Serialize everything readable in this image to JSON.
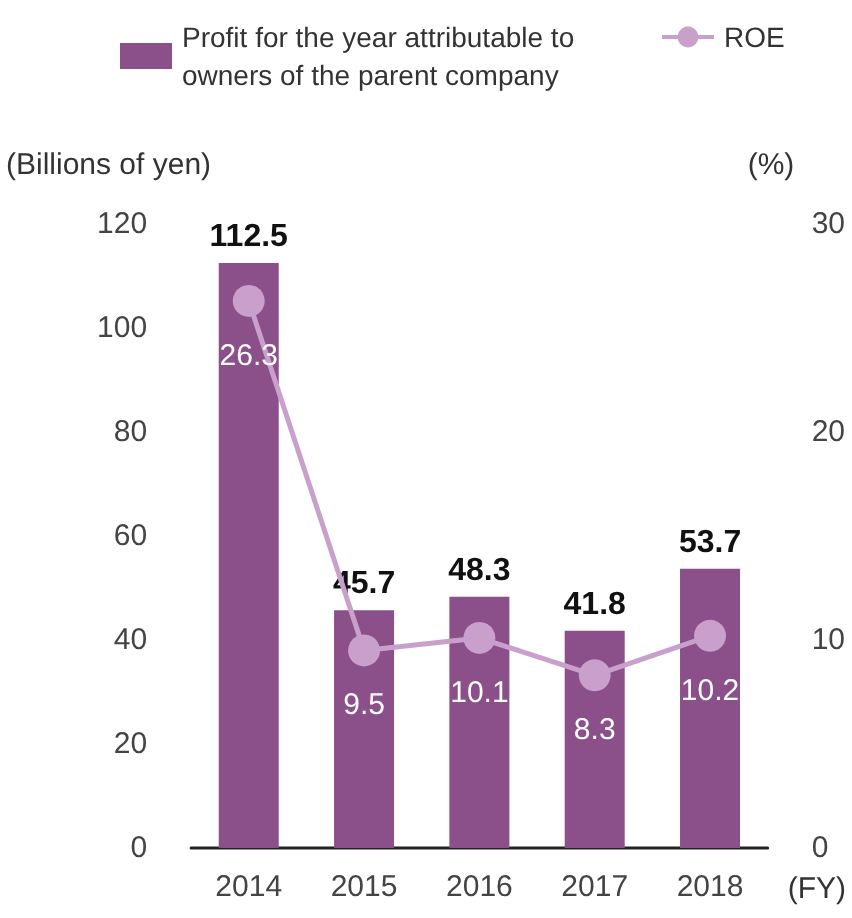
{
  "chart_data": {
    "type": "bar",
    "categories": [
      "2014",
      "2015",
      "2016",
      "2017",
      "2018"
    ],
    "xlabel": "(FY)",
    "ylabel": "(Billions of yen)",
    "y2label": "(%)",
    "series": [
      {
        "name": "Profit for the year attributable to owners of the parent company",
        "color": "#8b4f8a",
        "values": [
          112.5,
          45.7,
          48.3,
          41.8,
          53.7
        ]
      },
      {
        "name": "ROE",
        "type": "line",
        "axis": "y2",
        "color": "#c9a0cb",
        "values": [
          26.3,
          9.5,
          10.1,
          8.3,
          10.2
        ]
      }
    ],
    "ylim": [
      0,
      120
    ],
    "yticks": [
      0,
      20,
      40,
      60,
      80,
      100,
      120
    ],
    "y2lim": [
      0,
      30
    ],
    "y2ticks": [
      0,
      10,
      20,
      30
    ],
    "data_labels": true,
    "marker": "circle",
    "legend": "top",
    "grid": false
  }
}
